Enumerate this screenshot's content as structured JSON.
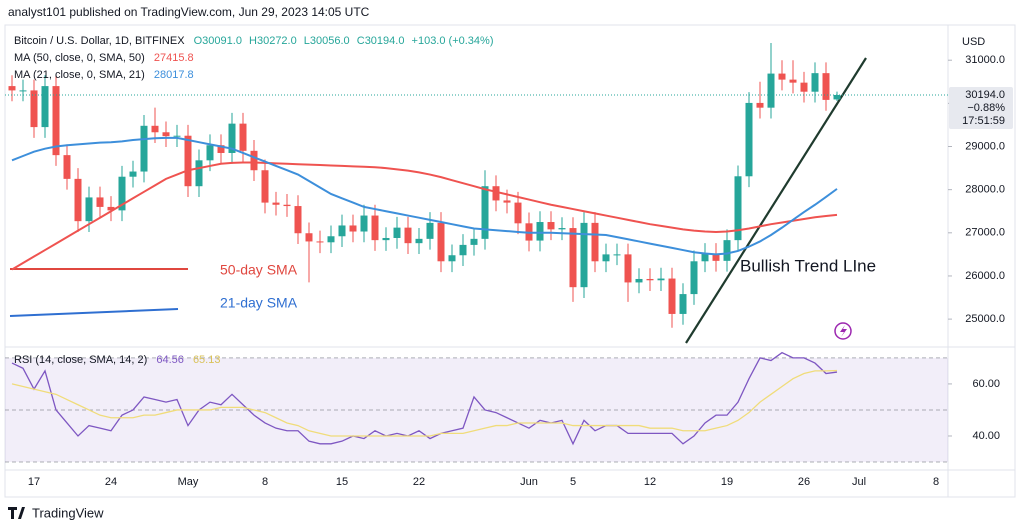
{
  "header": "analyst101 published on TradingView.com, Jun 29, 2023 14:05 UTC",
  "footer": "TradingView",
  "chart_data": {
    "type": "candlestick",
    "currency": "USD",
    "ohlc_labels": [
      "O30091.0",
      "H30272.0",
      "L30056.0",
      "C30194.0"
    ],
    "change_label": "+103.0 (+0.34%)",
    "last_price": {
      "label": "30194.0",
      "change": "−0.88%",
      "countdown": "17:51:59"
    },
    "annotations": [
      "Bullish Trend LIne",
      "50-day SMA",
      "21-day SMA"
    ],
    "categories": [
      null,
      null,
      "17",
      null,
      null,
      null,
      null,
      null,
      null,
      "24",
      null,
      null,
      null,
      null,
      null,
      null,
      "May",
      null,
      null,
      null,
      null,
      null,
      null,
      "8",
      null,
      null,
      null,
      null,
      null,
      null,
      "15",
      null,
      null,
      null,
      null,
      null,
      null,
      "22",
      null,
      null,
      null,
      null,
      null,
      null,
      null,
      null,
      null,
      "Jun",
      null,
      null,
      null,
      "5",
      null,
      null,
      null,
      null,
      null,
      null,
      "12",
      null,
      null,
      null,
      null,
      null,
      null,
      "19",
      null,
      null,
      null,
      null,
      null,
      null,
      "26",
      null,
      null,
      null,
      null,
      "Jul",
      null,
      null,
      null,
      null,
      null,
      null,
      "8"
    ],
    "ylim": [
      24400,
      31700
    ],
    "yticks": [
      {
        "value": 25000,
        "label": "25000.0"
      },
      {
        "value": 26000,
        "label": "26000.0"
      },
      {
        "value": 27000,
        "label": "27000.0"
      },
      {
        "value": 28000,
        "label": "28000.0"
      },
      {
        "value": 29000,
        "label": "29000.0"
      },
      {
        "value": 30000,
        "label": "30000.0"
      },
      {
        "value": 31000,
        "label": "31000.0"
      }
    ],
    "grid": false,
    "up_color": "#26a69a",
    "down_color": "#ef5350",
    "series": [
      {
        "name": "Bitcoin / U.S. Dollar, 1D, BITFINEX",
        "kind": "candles",
        "open": [
          30400,
          30300,
          30300,
          29450,
          30400,
          28800,
          28250,
          27270,
          27820,
          27600,
          27520,
          28300,
          28420,
          29480,
          29330,
          29240,
          29250,
          28080,
          28680,
          29030,
          28850,
          29530,
          28900,
          28450,
          27700,
          27650,
          27620,
          26990,
          26800,
          26780,
          26920,
          27170,
          27030,
          27400,
          26830,
          26880,
          27120,
          26760,
          26860,
          27230,
          26340,
          26480,
          26720,
          26860,
          28080,
          27750,
          27700,
          27220,
          26820,
          27250,
          27080,
          27110,
          25740,
          27230,
          26340,
          26500,
          26500,
          25850,
          25930,
          25900,
          25940,
          25120,
          25580,
          26340,
          26510,
          26350,
          26830,
          28310,
          30010,
          29900,
          30690,
          30550,
          30480,
          30270,
          30700,
          30091,
          null,
          null,
          null,
          null,
          null,
          null,
          null,
          null,
          null
        ],
        "high": [
          30650,
          30550,
          30550,
          30650,
          30650,
          29050,
          28500,
          28070,
          28070,
          27850,
          28550,
          28670,
          29730,
          29900,
          29580,
          29500,
          29500,
          28930,
          29280,
          29280,
          29780,
          29780,
          29150,
          28700,
          27950,
          27900,
          27870,
          27240,
          27050,
          27170,
          27420,
          27420,
          27650,
          27650,
          27130,
          27370,
          27370,
          27110,
          27480,
          27480,
          26730,
          26970,
          27110,
          28450,
          28330,
          28000,
          27950,
          27470,
          27500,
          27500,
          27360,
          27360,
          27480,
          27480,
          26750,
          26750,
          26750,
          26180,
          26180,
          26190,
          26190,
          25830,
          26590,
          26760,
          26760,
          27080,
          28560,
          30260,
          30500,
          31400,
          31000,
          31000,
          30730,
          30950,
          30950,
          30272,
          null,
          null,
          null,
          null,
          null,
          null,
          null,
          null,
          null
        ],
        "low": [
          30050,
          30050,
          29200,
          29200,
          28550,
          28000,
          27020,
          27020,
          27350,
          27270,
          27270,
          28050,
          28170,
          29080,
          28990,
          28990,
          27830,
          27830,
          28430,
          28600,
          28600,
          28650,
          28200,
          27450,
          27400,
          27370,
          26740,
          25850,
          26530,
          26530,
          26670,
          26780,
          26780,
          26580,
          26580,
          26630,
          26510,
          26510,
          26610,
          26090,
          26090,
          26230,
          26470,
          26610,
          27500,
          27450,
          26970,
          26570,
          26570,
          26830,
          26830,
          25400,
          25490,
          26090,
          26090,
          26250,
          25400,
          25600,
          25650,
          25650,
          24800,
          24870,
          25330,
          26090,
          26100,
          26100,
          26580,
          28060,
          29650,
          29650,
          30300,
          30230,
          30020,
          30020,
          29830,
          30056,
          null,
          null,
          null,
          null,
          null,
          null,
          null,
          null,
          null
        ],
        "close": [
          30300,
          30300,
          29450,
          30400,
          28800,
          28250,
          27270,
          27820,
          27600,
          27520,
          28300,
          28420,
          29480,
          29330,
          29240,
          29250,
          28080,
          28680,
          29030,
          28850,
          29530,
          28900,
          28450,
          27700,
          27650,
          27620,
          26990,
          26800,
          26780,
          26920,
          27170,
          27030,
          27400,
          26830,
          26880,
          27120,
          26760,
          26860,
          27230,
          26340,
          26480,
          26720,
          26860,
          28080,
          27750,
          27700,
          27220,
          26820,
          27250,
          27080,
          27110,
          25740,
          27230,
          26340,
          26500,
          26500,
          25850,
          25930,
          25900,
          25940,
          25120,
          25580,
          26340,
          26510,
          26350,
          26830,
          28310,
          30010,
          29900,
          30690,
          30550,
          30480,
          30270,
          30700,
          30080,
          30194,
          null,
          null,
          null,
          null,
          null,
          null,
          null,
          null,
          null
        ]
      },
      {
        "name": "MA (50, close, 0, SMA, 50)",
        "kind": "line",
        "color": "#ef5350",
        "last_label": "27415.8",
        "values": [
          26150,
          26300,
          26450,
          26600,
          26750,
          26900,
          27050,
          27200,
          27350,
          27500,
          27650,
          27800,
          27950,
          28100,
          28250,
          28350,
          28450,
          28500,
          28550,
          28600,
          28620,
          28630,
          28630,
          28620,
          28610,
          28600,
          28590,
          28580,
          28570,
          28560,
          28550,
          28540,
          28530,
          28520,
          28500,
          28470,
          28440,
          28400,
          28350,
          28290,
          28220,
          28150,
          28080,
          28010,
          27950,
          27890,
          27830,
          27770,
          27710,
          27650,
          27600,
          27550,
          27500,
          27450,
          27400,
          27350,
          27300,
          27250,
          27200,
          27160,
          27120,
          27080,
          27050,
          27030,
          27020,
          27030,
          27060,
          27100,
          27150,
          27200,
          27240,
          27280,
          27320,
          27360,
          27390,
          27416,
          null,
          null,
          null,
          null,
          null,
          null,
          null,
          null,
          null
        ]
      },
      {
        "name": "MA (21, close, 0, SMA, 21)",
        "kind": "line",
        "color": "#3d8fdb",
        "last_label": "28017.8",
        "values": [
          28680,
          28780,
          28880,
          28950,
          29000,
          29030,
          29050,
          29070,
          29090,
          29100,
          29120,
          29150,
          29170,
          29190,
          29200,
          29200,
          29150,
          29100,
          29050,
          29000,
          28950,
          28850,
          28750,
          28650,
          28550,
          28450,
          28350,
          28200,
          28050,
          27900,
          27800,
          27700,
          27600,
          27550,
          27500,
          27450,
          27400,
          27350,
          27300,
          27250,
          27200,
          27150,
          27100,
          27080,
          27060,
          27040,
          27020,
          27000,
          27000,
          27000,
          26990,
          26980,
          26970,
          26960,
          26950,
          26900,
          26850,
          26800,
          26750,
          26700,
          26650,
          26600,
          26550,
          26520,
          26500,
          26520,
          26580,
          26680,
          26800,
          26950,
          27120,
          27300,
          27480,
          27650,
          27830,
          28018,
          null,
          null,
          null,
          null,
          null,
          null,
          null,
          null,
          null
        ]
      }
    ],
    "rsi": {
      "title": "RSI (14, close, SMA, 14, 2)",
      "ylim": [
        27.7,
        73.8
      ],
      "yticks": [
        {
          "value": 40,
          "label": "40.00"
        },
        {
          "value": 60,
          "label": "60.00"
        }
      ],
      "levels": [
        70,
        50,
        30
      ],
      "band_color": "#7e57c2",
      "series": [
        {
          "name": "RSI",
          "color": "#7e57c2",
          "last_label": "64.56",
          "values": [
            68,
            66,
            58,
            65,
            50,
            45,
            40,
            44,
            43,
            42,
            48,
            50,
            55,
            54,
            53,
            54,
            44,
            50,
            53,
            52,
            56,
            52,
            48,
            45,
            43,
            42,
            42,
            38,
            37,
            37,
            38,
            40,
            39,
            42,
            40,
            41,
            40,
            42,
            39,
            41,
            42,
            43,
            55,
            50,
            49,
            47,
            45,
            43,
            46,
            45,
            46,
            37,
            46,
            42,
            44,
            44,
            41,
            41,
            41,
            41,
            41,
            37,
            40,
            45,
            48,
            48,
            53,
            62,
            70,
            69,
            72,
            70,
            70,
            68,
            64,
            64.56,
            null,
            null,
            null,
            null,
            null,
            null,
            null,
            null,
            null
          ]
        },
        {
          "name": "SMA",
          "color": "#f0dc7a",
          "last_label": "65.13",
          "values": [
            60,
            59,
            58,
            57,
            56,
            54,
            52,
            50,
            48,
            47,
            47,
            47,
            48,
            48,
            49,
            50,
            50,
            50,
            50,
            51,
            51,
            51,
            50,
            49,
            47,
            45,
            44,
            42,
            41,
            40,
            40,
            40,
            40,
            40,
            40,
            40,
            40,
            40,
            40,
            41,
            41,
            41,
            42,
            43,
            44,
            44,
            45,
            45,
            45,
            45,
            45,
            44,
            44,
            44,
            44,
            44,
            44,
            44,
            43,
            43,
            43,
            42,
            42,
            42,
            43,
            44,
            46,
            49,
            53,
            56,
            59,
            62,
            64,
            65,
            65,
            65.13,
            null,
            null,
            null,
            null,
            null,
            null,
            null,
            null,
            null
          ]
        }
      ]
    }
  }
}
